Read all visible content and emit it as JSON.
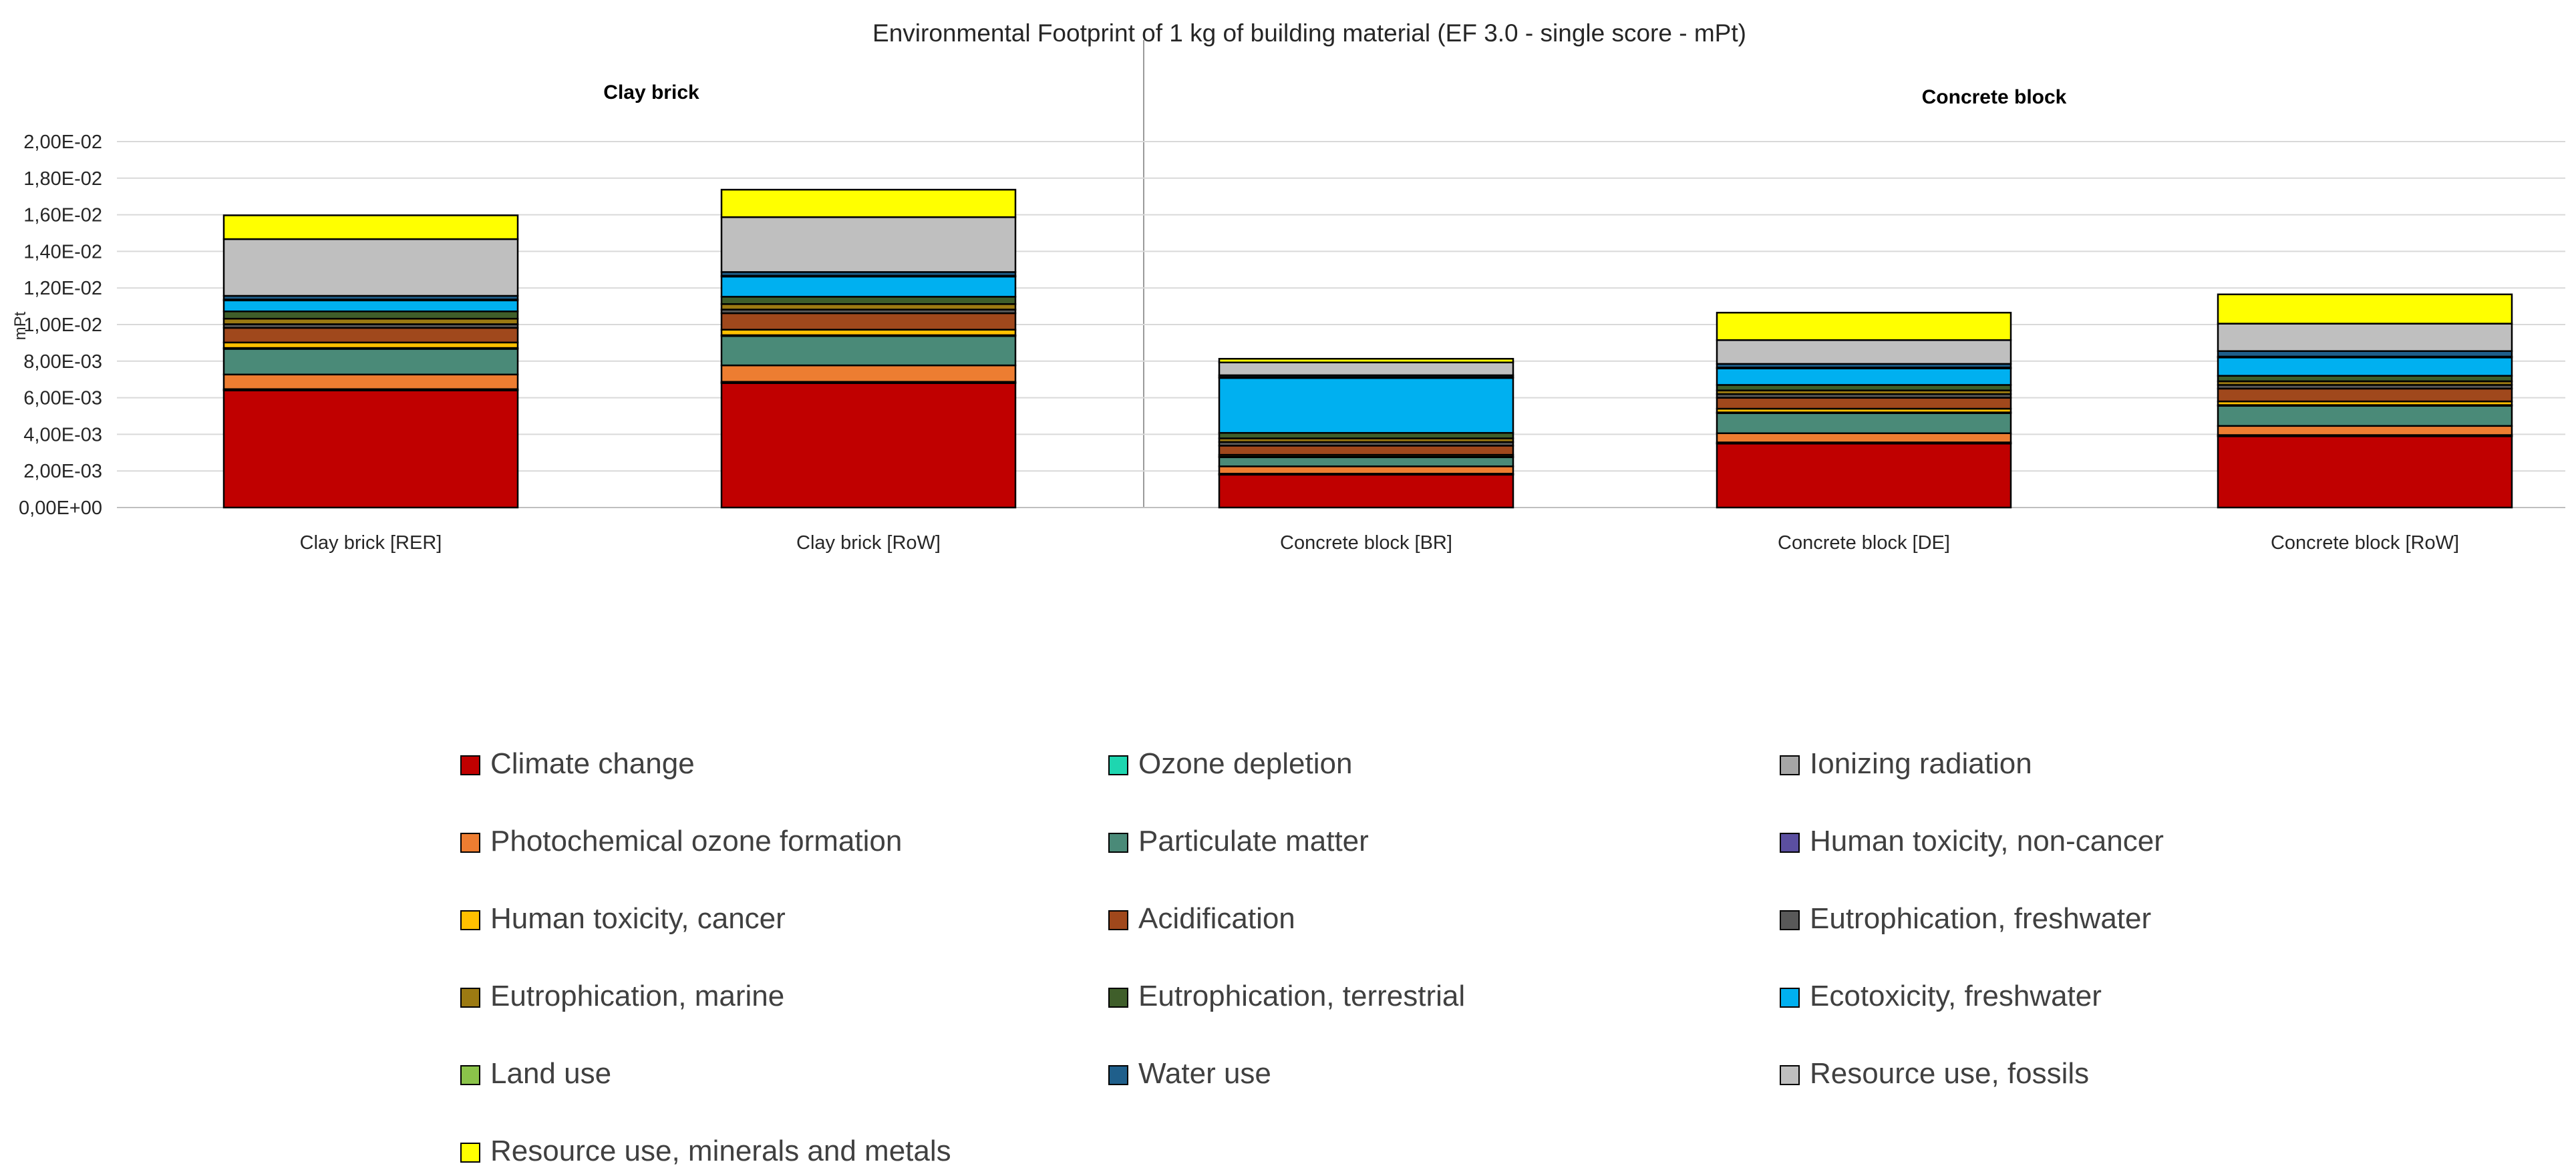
{
  "chart_data": {
    "type": "bar",
    "stacked": true,
    "title": "Environmental Footprint of 1 kg of building material (EF 3.0 - single score - mPt)",
    "ylabel": "mPt",
    "xlabel": "",
    "ylim": [
      0,
      0.02
    ],
    "yticks": [
      0,
      0.002,
      0.004,
      0.006,
      0.008,
      0.01,
      0.012,
      0.014,
      0.016,
      0.018,
      0.02
    ],
    "ytick_labels": [
      "0,00E+00",
      "2,00E-03",
      "4,00E-03",
      "6,00E-03",
      "8,00E-03",
      "1,00E-02",
      "1,20E-02",
      "1,40E-02",
      "1,60E-02",
      "1,80E-02",
      "2,00E-02"
    ],
    "grid": true,
    "legend_position": "bottom",
    "groups": [
      {
        "label": "Clay brick",
        "categories": [
          "Clay brick [RER]",
          "Clay brick [RoW]"
        ]
      },
      {
        "label": "Concrete block",
        "categories": [
          "Concrete block [BR]",
          "Concrete block [DE]",
          "Concrete block [RoW]"
        ]
      }
    ],
    "categories": [
      "Clay brick [RER]",
      "Clay brick [RoW]",
      "Concrete block [BR]",
      "Concrete block [DE]",
      "Concrete block [RoW]"
    ],
    "series": [
      {
        "name": "Climate change",
        "color": "#C00000",
        "values": [
          0.0064,
          0.0068,
          0.0018,
          0.0035,
          0.0039
        ]
      },
      {
        "name": "Ozone depletion",
        "color": "#1ED6B0",
        "values": [
          2e-05,
          2e-05,
          1e-05,
          1e-05,
          1e-05
        ]
      },
      {
        "name": "Ionizing radiation",
        "color": "#A6A6A6",
        "values": [
          5e-05,
          5e-05,
          4e-05,
          5e-05,
          5e-05
        ]
      },
      {
        "name": "Photochemical ozone formation",
        "color": "#ED7D31",
        "values": [
          0.0008,
          0.0009,
          0.0004,
          0.0005,
          0.0005
        ]
      },
      {
        "name": "Particulate matter",
        "color": "#4A8A78",
        "values": [
          0.0014,
          0.0016,
          0.0005,
          0.0011,
          0.0011
        ]
      },
      {
        "name": "Human toxicity, non-cancer",
        "color": "#5B4FA0",
        "values": [
          5e-05,
          5e-05,
          3e-05,
          4e-05,
          4e-05
        ]
      },
      {
        "name": "Human toxicity, cancer",
        "color": "#FFC000",
        "values": [
          0.0003,
          0.0003,
          0.0001,
          0.0002,
          0.0002
        ]
      },
      {
        "name": "Acidification",
        "color": "#A0481C",
        "values": [
          0.0008,
          0.0009,
          0.0005,
          0.0006,
          0.0007
        ]
      },
      {
        "name": "Eutrophication, freshwater",
        "color": "#595959",
        "values": [
          0.0002,
          0.0002,
          0.0002,
          0.0002,
          0.0002
        ]
      },
      {
        "name": "Eutrophication, marine",
        "color": "#9C7A12",
        "values": [
          0.0003,
          0.0003,
          0.0002,
          0.0002,
          0.0002
        ]
      },
      {
        "name": "Eutrophication, terrestrial",
        "color": "#3F5E2A",
        "values": [
          0.0004,
          0.0004,
          0.0003,
          0.0003,
          0.0003
        ]
      },
      {
        "name": "Ecotoxicity, freshwater",
        "color": "#00B0F0",
        "values": [
          0.0006,
          0.0011,
          0.003,
          0.0009,
          0.001
        ]
      },
      {
        "name": "Land use",
        "color": "#8BC34A",
        "values": [
          5e-05,
          5e-05,
          5e-05,
          5e-05,
          5e-05
        ]
      },
      {
        "name": "Water use",
        "color": "#1F5F8B",
        "values": [
          0.0002,
          0.0002,
          0.0001,
          0.0002,
          0.0003
        ]
      },
      {
        "name": "Resource use, fossils",
        "color": "#BFBFBF",
        "values": [
          0.0031,
          0.003,
          0.0007,
          0.0013,
          0.0015
        ]
      },
      {
        "name": "Resource use, minerals and metals",
        "color": "#FFFF00",
        "values": [
          0.0013,
          0.0015,
          0.0002,
          0.0015,
          0.0016
        ]
      }
    ]
  }
}
